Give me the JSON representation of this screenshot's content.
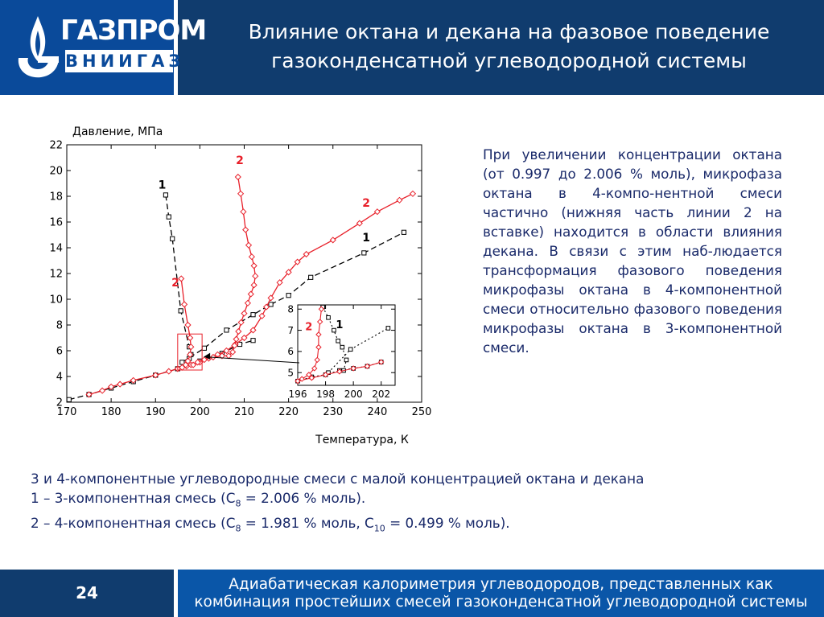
{
  "header": {
    "logo_brand": "ГАЗПРОМ",
    "logo_sub": "ВНИИГАЗ",
    "title_line1": "Влияние октана и декана на фазовое поведение",
    "title_line2": "газоконденсатной углеводородной системы"
  },
  "side_text": "При увеличении концентрации октана (от 0.997 до 2.006 % моль), микрофаза октана в 4-компо-нентной смеси частично (нижняя часть линии 2 на вставке) находится в области влияния декана. В связи с этим наб-людается трансформация фазового поведения микрофазы октана в 4-компонентной смеси относительно фазового поведения микрофазы октана в 3-компонентной смеси.",
  "caption": {
    "line1": "3 и 4-компонентные углеводородные смеси с малой концентрацией октана и декана",
    "line2_a": "1 – 3-компонентная смесь (C",
    "line2_sub": "8",
    "line2_b": " = 2.006 % моль).",
    "line3_a": "2 – 4-компонентная смесь (C",
    "line3_sub1": "8",
    "line3_b": " = 1.981 % моль, C",
    "line3_sub2": "10",
    "line3_c": " = 0.499 % моль)."
  },
  "footer": {
    "page_number": "24",
    "text_line1": "Адиабатическая калориметрия углеводородов, представленных как",
    "text_line2": "комбинация простейших смесей газоконденсатной углеводородной системы"
  },
  "colors": {
    "header_blue": "#103c6e",
    "logo_blue": "#0a4a9a",
    "footer_blue": "#0a56a8",
    "text_navy": "#1a2a6a",
    "series_1": "#000000",
    "series_2": "#e8202a"
  },
  "chart_data": [
    {
      "type": "line",
      "xlabel": "Температура, К",
      "ylabel": "Давление, МПа",
      "xlim": [
        170,
        250
      ],
      "ylim": [
        2,
        22
      ],
      "xticks": [
        170,
        180,
        190,
        200,
        210,
        220,
        230,
        240,
        250
      ],
      "yticks": [
        2,
        4,
        6,
        8,
        10,
        12,
        14,
        16,
        18,
        20,
        22
      ],
      "series": [
        {
          "name": "1",
          "style": "dashed",
          "marker": "square",
          "color": "#000000",
          "segments": [
            [
              [
                170.5,
                2.2
              ],
              [
                175,
                2.6
              ],
              [
                180,
                3.1
              ],
              [
                185,
                3.6
              ],
              [
                190,
                4.1
              ],
              [
                195,
                4.6
              ],
              [
                200,
                5.2
              ],
              [
                205,
                5.8
              ],
              [
                209,
                6.5
              ],
              [
                212,
                6.8
              ]
            ],
            [
              [
                196,
                5.1
              ],
              [
                201,
                6.2
              ],
              [
                206,
                7.6
              ],
              [
                212,
                8.8
              ],
              [
                216,
                9.6
              ],
              [
                220,
                10.3
              ],
              [
                225,
                11.7
              ],
              [
                237,
                13.6
              ],
              [
                246,
                15.2
              ]
            ],
            [
              [
                192.3,
                18.1
              ],
              [
                193,
                16.4
              ],
              [
                193.8,
                14.7
              ],
              [
                195.7,
                9.1
              ],
              [
                197.6,
                6.3
              ],
              [
                198,
                5.7
              ],
              [
                197.6,
                5.4
              ]
            ]
          ],
          "labels": [
            {
              "text": "1",
              "x": 191.5,
              "y": 18.6
            },
            {
              "text": "1",
              "x": 237.5,
              "y": 14.5
            }
          ]
        },
        {
          "name": "2",
          "style": "solid",
          "marker": "diamond",
          "color": "#e8202a",
          "segments": [
            [
              [
                175,
                2.6
              ],
              [
                178,
                2.9
              ],
              [
                180,
                3.2
              ],
              [
                182,
                3.4
              ],
              [
                185,
                3.7
              ],
              [
                190,
                4.1
              ],
              [
                193,
                4.4
              ],
              [
                195,
                4.6
              ],
              [
                197,
                4.8
              ],
              [
                198,
                4.9
              ],
              [
                200,
                5.1
              ],
              [
                202,
                5.4
              ],
              [
                204,
                5.7
              ],
              [
                206,
                6.0
              ],
              [
                208,
                6.5
              ],
              [
                210,
                7.0
              ],
              [
                212,
                7.6
              ],
              [
                214,
                8.7
              ],
              [
                215,
                9.4
              ],
              [
                216,
                10.1
              ],
              [
                218,
                11.3
              ],
              [
                220,
                12.1
              ],
              [
                222,
                12.9
              ],
              [
                224,
                13.5
              ],
              [
                230,
                14.6
              ],
              [
                236,
                15.9
              ],
              [
                240,
                16.8
              ],
              [
                245,
                17.7
              ],
              [
                248,
                18.2
              ]
            ],
            [
              [
                208.6,
                19.5
              ],
              [
                209.2,
                18.2
              ],
              [
                209.8,
                16.8
              ],
              [
                210.3,
                15.4
              ],
              [
                211,
                14.2
              ],
              [
                211.7,
                13.3
              ],
              [
                212.2,
                12.6
              ],
              [
                212.5,
                11.8
              ],
              [
                212.2,
                11.1
              ],
              [
                211.5,
                10.4
              ],
              [
                210.8,
                9.7
              ],
              [
                210,
                8.9
              ],
              [
                209.3,
                8.2
              ],
              [
                208.7,
                7.5
              ],
              [
                208.2,
                6.9
              ],
              [
                207.8,
                6.4
              ],
              [
                207.4,
                5.9
              ],
              [
                206.5,
                5.6
              ],
              [
                205,
                5.6
              ],
              [
                203,
                5.5
              ],
              [
                201,
                5.3
              ],
              [
                199.5,
                5.1
              ],
              [
                198.5,
                4.9
              ]
            ],
            [
              [
                195.8,
                11.6
              ],
              [
                196.5,
                9.6
              ],
              [
                197.3,
                8.0
              ],
              [
                197.8,
                7.0
              ],
              [
                198,
                6.3
              ],
              [
                197.8,
                5.7
              ],
              [
                197.3,
                5.2
              ],
              [
                196.8,
                4.9
              ],
              [
                196,
                4.7
              ]
            ]
          ],
          "labels": [
            {
              "text": "2",
              "x": 209,
              "y": 20.5
            },
            {
              "text": "2",
              "x": 237.5,
              "y": 17.2
            },
            {
              "text": "2",
              "x": 194.5,
              "y": 11.0
            }
          ]
        }
      ],
      "annotations": [
        {
          "type": "zoom-box",
          "x": [
            195,
            200.5
          ],
          "y": [
            4.5,
            7.3
          ]
        }
      ]
    },
    {
      "type": "line",
      "role": "inset",
      "xlim": [
        196,
        203
      ],
      "ylim": [
        4.4,
        8.2
      ],
      "xticks": [
        196,
        198,
        200,
        202
      ],
      "yticks": [
        5,
        6,
        7,
        8
      ],
      "series": [
        {
          "name": "1",
          "style": "dotted",
          "marker": "square",
          "color": "#000000",
          "segments": [
            [
              [
                196,
                4.6
              ],
              [
                197,
                4.8
              ],
              [
                198,
                4.9
              ],
              [
                199,
                5.1
              ],
              [
                200,
                5.2
              ],
              [
                201,
                5.3
              ],
              [
                202,
                5.5
              ]
            ],
            [
              [
                198.2,
                5.0
              ],
              [
                199.8,
                6.1
              ],
              [
                202.5,
                7.1
              ]
            ],
            [
              [
                197.8,
                8.1
              ],
              [
                198.2,
                7.6
              ],
              [
                198.6,
                7.0
              ],
              [
                198.9,
                6.5
              ],
              [
                199.2,
                6.2
              ],
              [
                199.5,
                5.6
              ],
              [
                199.3,
                5.1
              ]
            ]
          ],
          "labels": [
            {
              "text": "1",
              "x": 199.0,
              "y": 7.1
            }
          ]
        },
        {
          "name": "2",
          "style": "solid",
          "marker": "diamond",
          "color": "#e8202a",
          "segments": [
            [
              [
                196,
                4.6
              ],
              [
                197,
                4.75
              ],
              [
                198,
                4.9
              ],
              [
                199,
                5.05
              ],
              [
                200,
                5.2
              ],
              [
                201,
                5.3
              ],
              [
                202,
                5.5
              ]
            ],
            [
              [
                197.7,
                8.0
              ],
              [
                197.6,
                7.4
              ],
              [
                197.5,
                6.8
              ],
              [
                197.5,
                6.2
              ],
              [
                197.4,
                5.6
              ],
              [
                197.2,
                5.2
              ],
              [
                196.8,
                4.9
              ],
              [
                196.3,
                4.7
              ]
            ]
          ],
          "labels": [
            {
              "text": "2",
              "x": 196.8,
              "y": 7.0
            }
          ]
        }
      ]
    }
  ]
}
